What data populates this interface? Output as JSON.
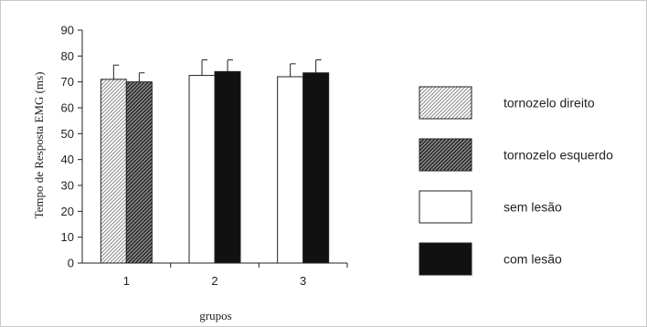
{
  "chart_data": {
    "type": "bar",
    "xlabel": "grupos",
    "ylabel": "Tempo de Resposta EMG (ms)",
    "ylim": [
      0,
      90
    ],
    "yticks": [
      0,
      10,
      20,
      30,
      40,
      50,
      60,
      70,
      80,
      90
    ],
    "categories": [
      "1",
      "2",
      "3"
    ],
    "grid": false,
    "legend_position": "right",
    "series": [
      {
        "name": "tornozelo direito",
        "pattern": "light-hatch",
        "values": [
          71,
          null,
          null
        ],
        "errors": [
          5.5,
          null,
          null
        ]
      },
      {
        "name": "tornozelo esquerdo",
        "pattern": "dark-hatch",
        "values": [
          70,
          null,
          null
        ],
        "errors": [
          3.5,
          null,
          null
        ]
      },
      {
        "name": "sem lesão",
        "pattern": "white",
        "values": [
          null,
          72.5,
          72
        ],
        "errors": [
          null,
          6,
          5
        ]
      },
      {
        "name": "com lesão",
        "pattern": "black",
        "values": [
          null,
          74,
          73.5
        ],
        "errors": [
          null,
          4.5,
          5
        ]
      }
    ]
  }
}
